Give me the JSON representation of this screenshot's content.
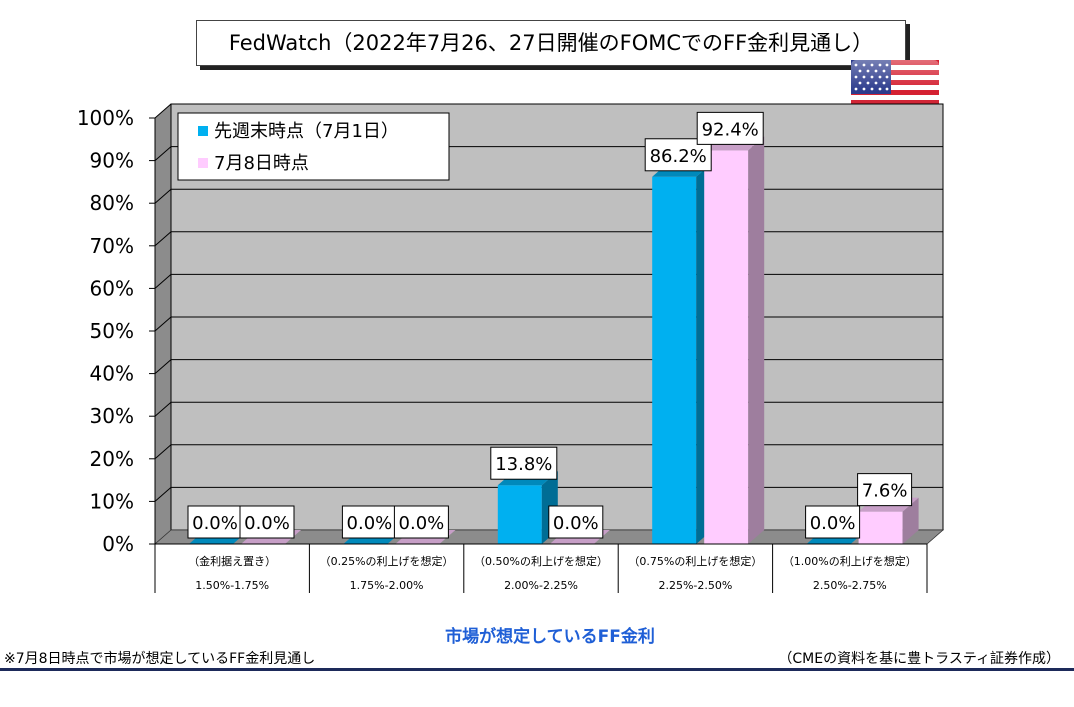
{
  "page": {
    "title": "FedWatch（2022年7月26、27日開催のFOMCでのFF金利見通し）",
    "xaxis_title": "市場が想定しているFF金利",
    "footnote": "※7月8日時点で市場が想定しているFF金利見通し",
    "source": "（CMEの資料を基に豊トラスティ証券作成）",
    "flag_icon": "us-flag-icon"
  },
  "chart_data": {
    "type": "bar",
    "title": "FedWatch（2022年7月26、27日開催のFOMCでのFF金利見通し）",
    "xlabel": "市場が想定しているFF金利",
    "ylabel": "",
    "ylim": [
      0,
      100
    ],
    "yticks": [
      "0%",
      "10%",
      "20%",
      "30%",
      "40%",
      "50%",
      "60%",
      "70%",
      "80%",
      "90%",
      "100%"
    ],
    "grid": true,
    "legend_position": "top-left",
    "categories": [
      {
        "line1": "（金利据え置き）",
        "line2": "1.50%-1.75%"
      },
      {
        "line1": "（0.25%の利上げを想定）",
        "line2": "1.75%-2.00%"
      },
      {
        "line1": "（0.50%の利上げを想定）",
        "line2": "2.00%-2.25%"
      },
      {
        "line1": "（0.75%の利上げを想定）",
        "line2": "2.25%-2.50%"
      },
      {
        "line1": "（1.00%の利上げを想定）",
        "line2": "2.50%-2.75%"
      }
    ],
    "series": [
      {
        "name": "先週末時点（7月1日）",
        "color": "#00b0f0",
        "values": [
          0.0,
          0.0,
          13.8,
          86.2,
          0.0
        ],
        "labels": [
          "0.0%",
          "0.0%",
          "13.8%",
          "86.2%",
          "0.0%"
        ]
      },
      {
        "name": "7月8日時点",
        "color": "#ffccff",
        "values": [
          0.0,
          0.0,
          0.0,
          92.4,
          7.6
        ],
        "labels": [
          "0.0%",
          "0.0%",
          "0.0%",
          "92.4%",
          "7.6%"
        ]
      }
    ]
  }
}
